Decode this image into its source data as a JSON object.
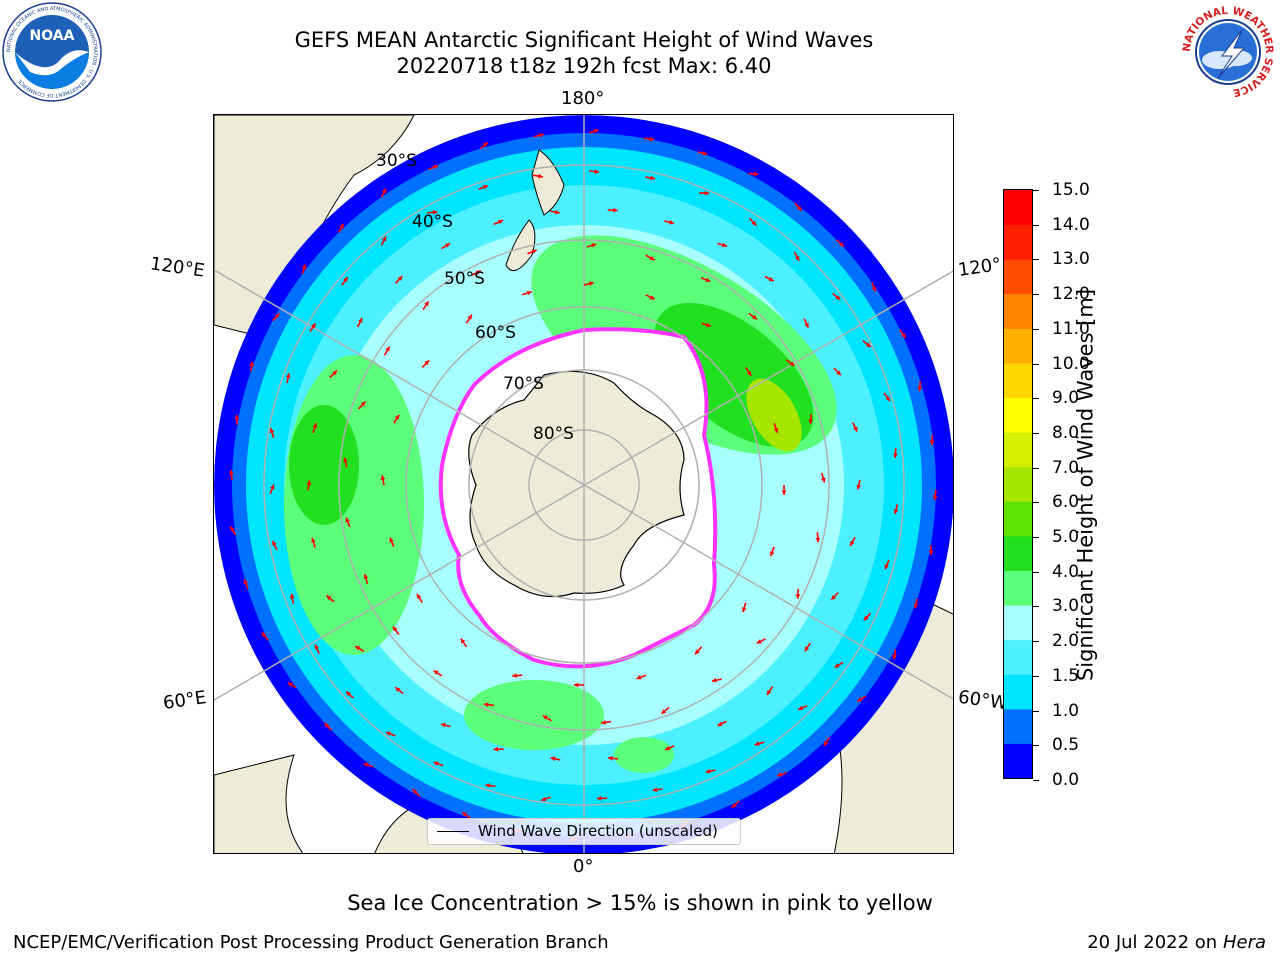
{
  "header": {
    "title_line1": "GEFS MEAN Antarctic Significant Height of Wind Waves",
    "title_line2": "20220718 t18z 192h fcst   Max: 6.40"
  },
  "logos": {
    "noaa_text": "NOAA",
    "noaa_ring_text": "NATIONAL OCEANIC AND ATMOSPHERIC ADMINISTRATION · U.S. DEPARTMENT OF COMMERCE",
    "nws_ring_text": "NATIONAL WEATHER SERVICE"
  },
  "map": {
    "projection": "south polar stereographic",
    "longitude_labels": {
      "top": "180°",
      "bottom": "0°",
      "left_upper": "120°E",
      "left_lower": "60°E",
      "right_upper": "120°",
      "right_lower": "60°W"
    },
    "latitude_labels": [
      "30°S",
      "40°S",
      "50°S",
      "60°S",
      "70°S",
      "80°S"
    ],
    "colors": {
      "land": "#eeecd9",
      "ice": "#ffffff",
      "ice_edge": "#ff33ff",
      "arrow": "#ff0000",
      "gridline": "#b0b0b0"
    },
    "legend_label": "Wind Wave Direction (unscaled)"
  },
  "colorbar": {
    "title": "Significant Height of Wind Waves [m]",
    "tick_labels": [
      "15.0",
      "14.0",
      "13.0",
      "12.0",
      "11.0",
      "10.0",
      "9.0",
      "8.0",
      "7.0",
      "6.0",
      "5.0",
      "4.0",
      "3.0",
      "2.0",
      "1.5",
      "1.0",
      "0.5",
      "0.0"
    ],
    "colors": [
      "#0000ff",
      "#0070ff",
      "#00e5ff",
      "#4df0ff",
      "#a8ffff",
      "#5cff7a",
      "#20e020",
      "#5fe000",
      "#a6e600",
      "#d2f000",
      "#ffff00",
      "#ffd700",
      "#ffb000",
      "#ff8500",
      "#ff4d00",
      "#ff1e00",
      "#ff0000"
    ]
  },
  "note": "Sea Ice Concentration > 15% is shown in pink to yellow",
  "footer": {
    "left": "NCEP/EMC/Verification Post Processing Product Generation Branch",
    "right_date": "20 Jul 2022 on",
    "right_host": "Hera"
  }
}
